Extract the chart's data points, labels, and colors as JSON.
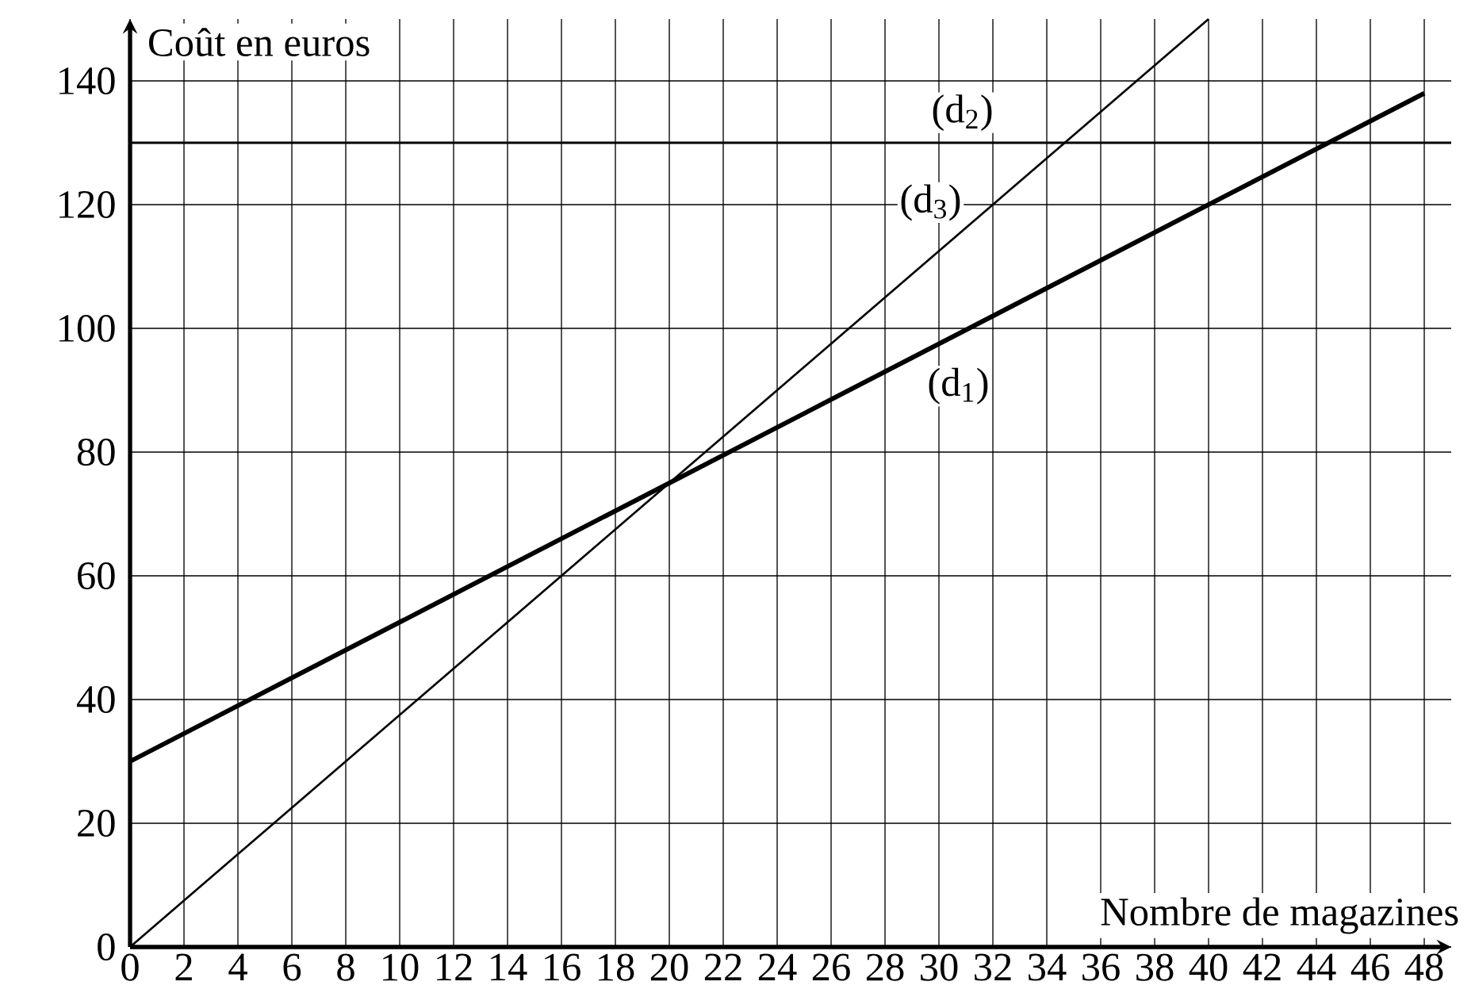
{
  "chart_data": {
    "type": "line",
    "xlabel": "Nombre de magazines",
    "ylabel": "Coût en euros",
    "series": [
      {
        "name": "(d$_{1}$)",
        "color": "#000000",
        "x": [
          0,
          48
        ],
        "values": [
          30,
          138
        ]
      },
      {
        "name": "(d$_{2}$)",
        "color": "#000000",
        "x": [
          0,
          49
        ],
        "values": [
          130,
          130
        ]
      },
      {
        "name": "(d$_{3}$)",
        "color": "#000000",
        "x": [
          0,
          40
        ],
        "values": [
          0,
          150
        ]
      }
    ],
    "xlim": [
      0,
      49
    ],
    "ylim": [
      0,
      150
    ],
    "xticks": [
      0,
      2,
      4,
      6,
      8,
      10,
      12,
      14,
      16,
      18,
      20,
      22,
      24,
      26,
      28,
      30,
      32,
      34,
      36,
      38,
      40,
      42,
      44,
      46,
      48
    ],
    "yticks": [
      0,
      20,
      40,
      60,
      80,
      100,
      120,
      140
    ],
    "grid": true,
    "line_style": "solid"
  }
}
